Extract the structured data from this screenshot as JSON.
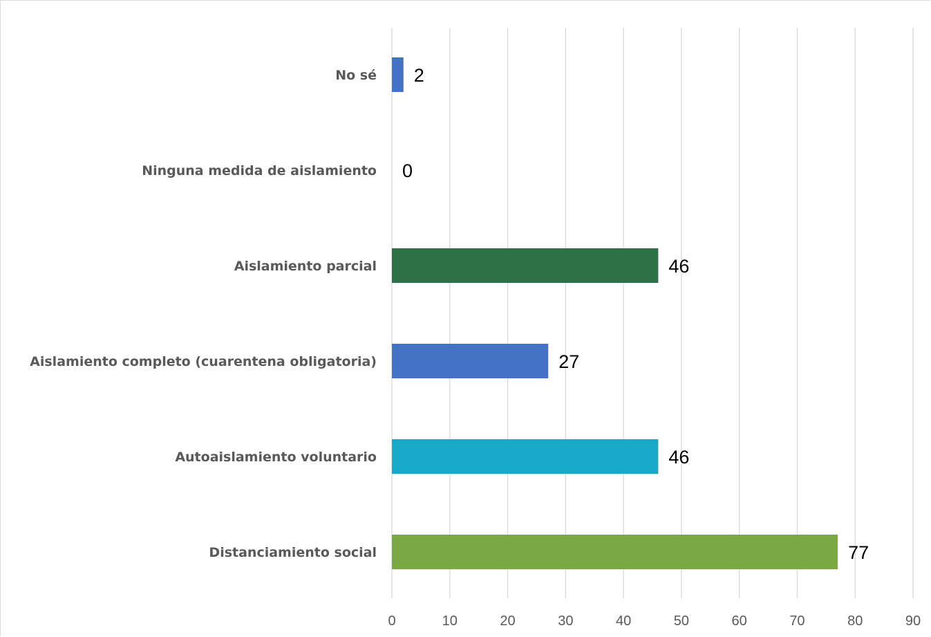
{
  "chart_data": {
    "type": "bar",
    "orientation": "horizontal",
    "categories": [
      "No sé",
      "Ninguna medida de aislamiento",
      "Aislamiento parcial",
      "Aislamiento completo (cuarentena obligatoria)",
      "Autoaislamiento voluntario",
      "Distanciamiento social"
    ],
    "values": [
      2,
      0,
      46,
      27,
      46,
      77
    ],
    "value_labels": [
      "2",
      "0",
      "46",
      "27",
      "46",
      "77"
    ],
    "colors": [
      "#4472c4",
      "#4472c4",
      "#2e7045",
      "#4472c4",
      "#1aaac9",
      "#7aa843"
    ],
    "xlim": [
      0,
      90
    ],
    "xticks": [
      0,
      10,
      20,
      30,
      40,
      50,
      60,
      70,
      80,
      90
    ],
    "grid": true,
    "legend": "none"
  }
}
